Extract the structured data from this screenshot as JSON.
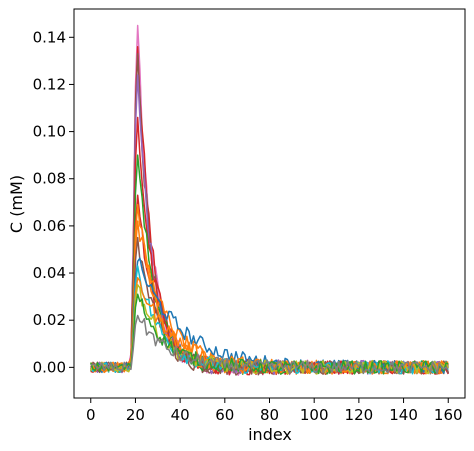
{
  "chart_data": {
    "type": "line",
    "title": "",
    "xlabel": "index",
    "ylabel": "C (mM)",
    "xlim": [
      -7.5,
      167.5
    ],
    "ylim": [
      -0.013,
      0.152
    ],
    "xticks": [
      0,
      20,
      40,
      60,
      80,
      100,
      120,
      140,
      160
    ],
    "yticks": [
      0.0,
      0.02,
      0.04,
      0.06,
      0.08,
      0.1,
      0.12,
      0.14
    ],
    "ytick_labels": [
      "0.00",
      "0.02",
      "0.04",
      "0.06",
      "0.08",
      "0.10",
      "0.12",
      "0.14"
    ],
    "grid": false,
    "legend": "none",
    "n_points": 161,
    "peak_index": 21,
    "series": [
      {
        "color": "#e377c2",
        "peak": 0.145,
        "tail": 6.0
      },
      {
        "color": "#d62728",
        "peak": 0.136,
        "tail": 6.5
      },
      {
        "color": "#8c564b",
        "peak": 0.133,
        "tail": 6.0
      },
      {
        "color": "#9467bd",
        "peak": 0.124,
        "tail": 6.5
      },
      {
        "color": "#d62728",
        "peak": 0.106,
        "tail": 7.0
      },
      {
        "color": "#2ca02c",
        "peak": 0.09,
        "tail": 7.5
      },
      {
        "color": "#d62728",
        "peak": 0.073,
        "tail": 8.0
      },
      {
        "color": "#ff7f0e",
        "peak": 0.069,
        "tail": 9.0
      },
      {
        "color": "#ff7f0e",
        "peak": 0.062,
        "tail": 12.0
      },
      {
        "color": "#8c564b",
        "peak": 0.055,
        "tail": 8.5
      },
      {
        "color": "#1f77b4",
        "peak": 0.045,
        "tail": 19.0
      },
      {
        "color": "#17becf",
        "peak": 0.043,
        "tail": 10.0
      },
      {
        "color": "#ff7f0e",
        "peak": 0.038,
        "tail": 15.0
      },
      {
        "color": "#bcbd22",
        "peak": 0.035,
        "tail": 11.0
      },
      {
        "color": "#2ca02c",
        "peak": 0.031,
        "tail": 12.0
      },
      {
        "color": "#7f7f7f",
        "peak": 0.022,
        "tail": 13.0
      }
    ]
  }
}
